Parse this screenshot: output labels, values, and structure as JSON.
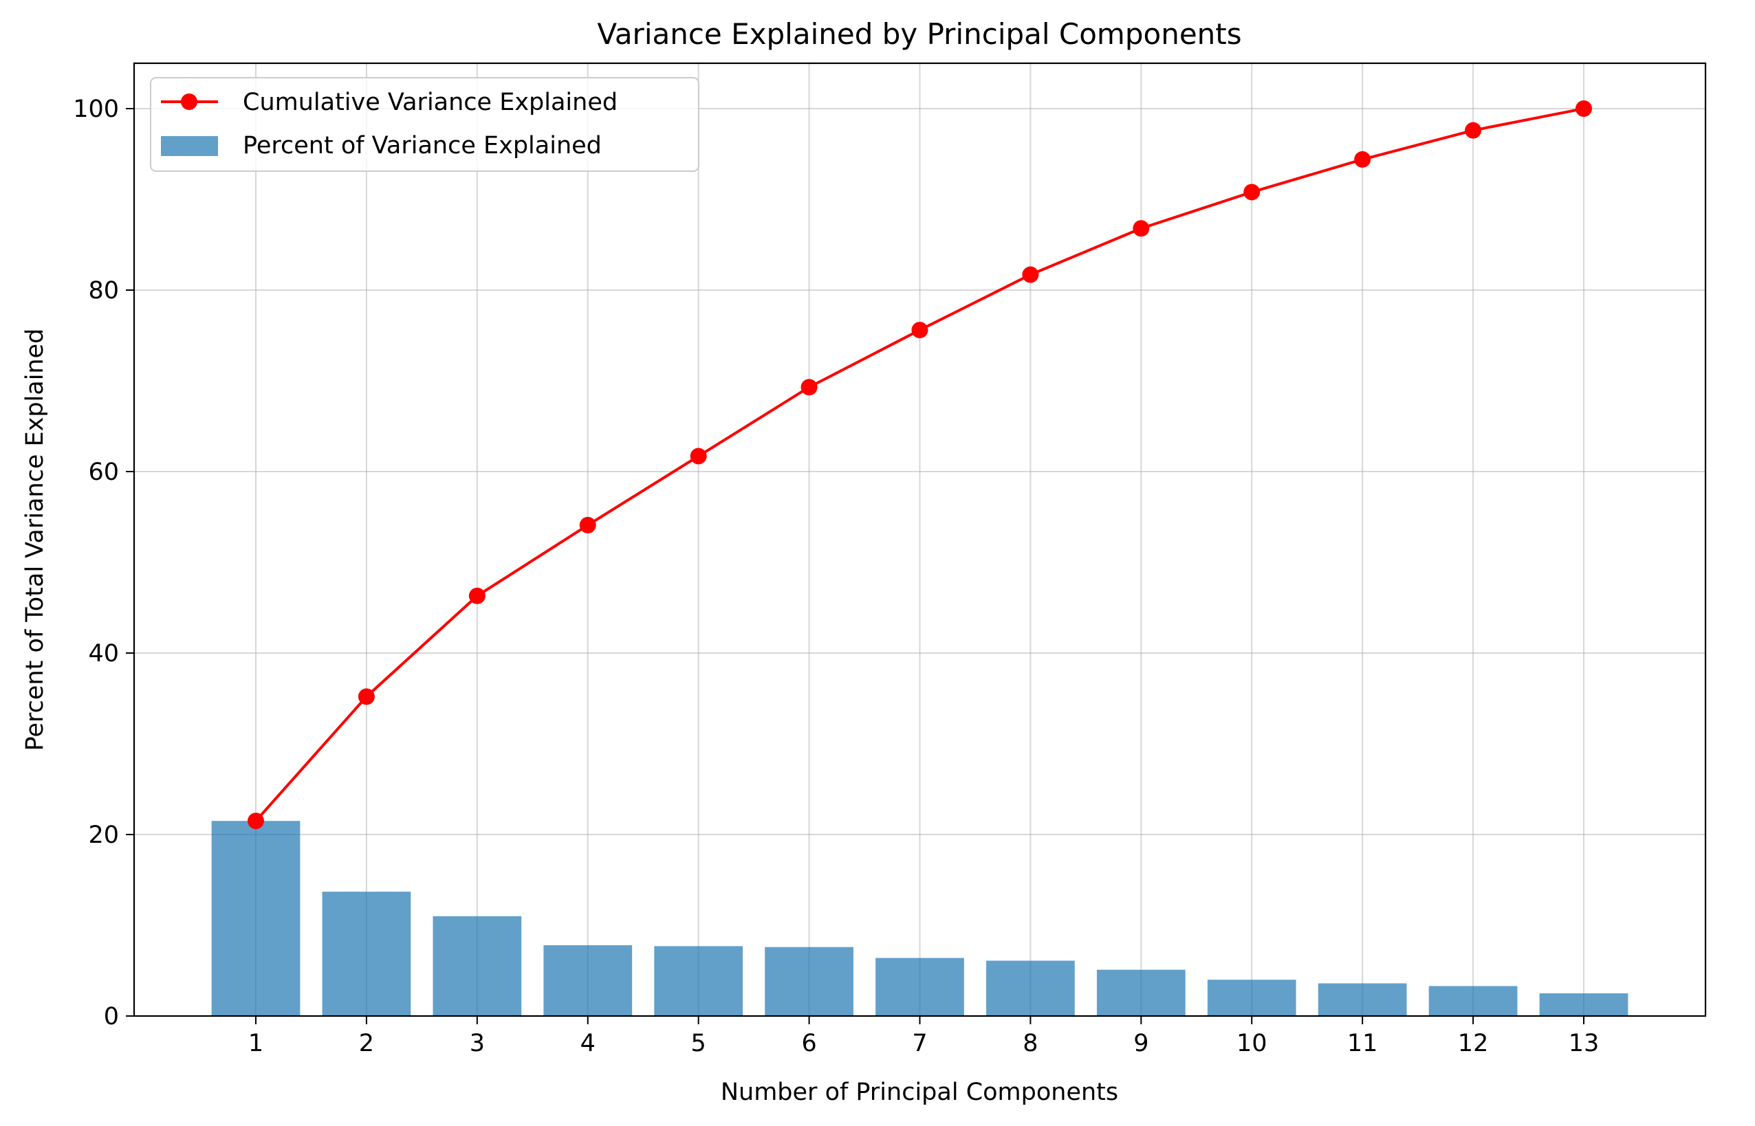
{
  "chart_data": {
    "type": "bar",
    "title": "Variance Explained by Principal Components",
    "xlabel": "Number of Principal Components",
    "ylabel": "Percent of Total Variance Explained",
    "categories": [
      "1",
      "2",
      "3",
      "4",
      "5",
      "6",
      "7",
      "8",
      "9",
      "10",
      "11",
      "12",
      "13"
    ],
    "x": [
      1,
      2,
      3,
      4,
      5,
      6,
      7,
      8,
      9,
      10,
      11,
      12,
      13
    ],
    "series": [
      {
        "name": "Percent of Variance Explained",
        "type": "bar",
        "color": "#1f77b4",
        "values": [
          21.5,
          13.7,
          11.0,
          7.8,
          7.7,
          7.6,
          6.4,
          6.1,
          5.1,
          4.0,
          3.6,
          3.3,
          2.5
        ]
      },
      {
        "name": "Cumulative Variance Explained",
        "type": "line",
        "color": "#ff0000",
        "values": [
          21.5,
          35.2,
          46.3,
          54.1,
          61.7,
          69.3,
          75.6,
          81.7,
          86.8,
          90.8,
          94.4,
          97.6,
          100.0
        ]
      }
    ],
    "xlim": [
      -0.1,
      14.1
    ],
    "ylim": [
      0,
      105
    ],
    "yticks": [
      0,
      20,
      40,
      60,
      80,
      100
    ],
    "grid": true,
    "legend_position": "top-left"
  }
}
